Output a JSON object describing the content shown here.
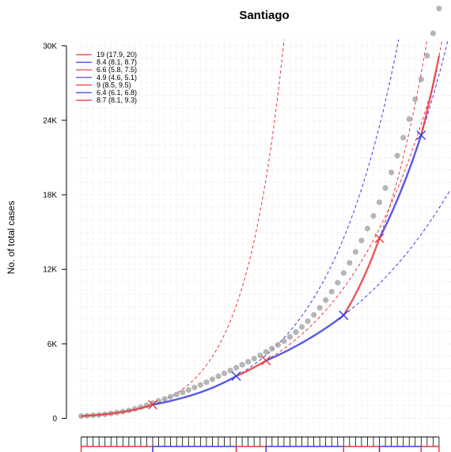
{
  "chart_data": {
    "type": "line",
    "title": "Santiago",
    "xlabel": "",
    "ylabel": "No. of total cases",
    "ylim": [
      -1500,
      30500
    ],
    "y_ticks": [
      0,
      6000,
      12000,
      18000,
      24000,
      30000
    ],
    "y_tick_labels": [
      "0",
      "6K",
      "12K",
      "18K",
      "24K",
      "30K"
    ],
    "xlim": [
      -1,
      62
    ],
    "grid": true,
    "legend_position": "top-left",
    "observed": {
      "color": "#9e9e9e",
      "x": [
        0,
        1,
        2,
        3,
        4,
        5,
        6,
        7,
        8,
        9,
        10,
        11,
        12,
        13,
        14,
        15,
        16,
        17,
        18,
        19,
        20,
        21,
        22,
        23,
        24,
        25,
        26,
        27,
        28,
        29,
        30,
        31,
        32,
        33,
        34,
        35,
        36,
        37,
        38,
        39,
        40,
        41,
        42,
        43,
        44,
        45,
        46,
        47,
        48,
        49,
        50,
        51,
        52,
        53,
        54,
        55,
        56,
        57,
        58,
        59,
        60
      ],
      "y": [
        180,
        210,
        240,
        280,
        330,
        390,
        460,
        540,
        640,
        760,
        900,
        1060,
        1230,
        1400,
        1570,
        1740,
        1910,
        2090,
        2280,
        2480,
        2690,
        2910,
        3150,
        3390,
        3620,
        3850,
        4080,
        4320,
        4560,
        4810,
        5070,
        5340,
        5620,
        5910,
        6220,
        6560,
        6940,
        7360,
        7820,
        8330,
        8900,
        9520,
        10200,
        10920,
        11700,
        12520,
        13400,
        14320,
        15280,
        16300,
        17400,
        18550,
        19800,
        21150,
        22600,
        24100,
        25700,
        27300,
        29200,
        31000,
        33000
      ]
    },
    "series": [
      {
        "name": "19 (17.9, 20)",
        "color": "#e8383b"
      },
      {
        "name": "8.4 (8.1, 8.7)",
        "color": "#3b3be8"
      },
      {
        "name": "6.6 (5.8, 7.5)",
        "color": "#e8383b"
      },
      {
        "name": "4.9 (4.6, 5.1)",
        "color": "#3b3be8"
      },
      {
        "name": "9 (8.5, 9.5)",
        "color": "#e8383b"
      },
      {
        "name": "6.4 (6.1, 6.8)",
        "color": "#3b3be8"
      },
      {
        "name": "8.7 (8.1, 9.3)",
        "color": "#e8383b"
      }
    ],
    "segments": [
      {
        "color": "#e8383b",
        "x_start": 0,
        "x_end": 12,
        "break_y": 1100,
        "extrap_y_end": 30500
      },
      {
        "color": "#3b3be8",
        "x_start": 12,
        "x_end": 26,
        "break_y": 3400,
        "extrap_y_end": 30500
      },
      {
        "color": "#e8383b",
        "x_start": 26,
        "x_end": 31,
        "break_y": 4650,
        "extrap_y_end": 28000
      },
      {
        "color": "#3b3be8",
        "x_start": 31,
        "x_end": 44,
        "break_y": 8300,
        "extrap_y_end": 18300
      },
      {
        "color": "#e8383b",
        "x_start": 44,
        "x_end": 50,
        "break_y": 14500,
        "extrap_y_end": 30500
      },
      {
        "color": "#3b3be8",
        "x_start": 50,
        "x_end": 57,
        "break_y": 22800,
        "extrap_y_end": 30500
      },
      {
        "color": "#e8383b",
        "x_start": 57,
        "x_end": 60,
        "break_y": 29200,
        "extrap_y_end": 30500
      }
    ]
  }
}
